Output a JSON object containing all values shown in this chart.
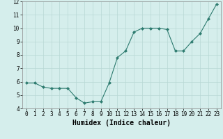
{
  "x": [
    0,
    1,
    2,
    3,
    4,
    5,
    6,
    7,
    8,
    9,
    10,
    11,
    12,
    13,
    14,
    15,
    16,
    17,
    18,
    19,
    20,
    21,
    22,
    23
  ],
  "y": [
    5.9,
    5.9,
    5.6,
    5.5,
    5.5,
    5.5,
    4.8,
    4.4,
    4.5,
    4.5,
    5.9,
    7.8,
    8.3,
    9.7,
    10.0,
    10.0,
    10.0,
    9.9,
    8.3,
    8.3,
    9.0,
    9.6,
    10.7,
    11.8
  ],
  "line_color": "#2d7b6f",
  "marker": "D",
  "marker_size": 2.0,
  "bg_color": "#d5eeec",
  "grid_color": "#b8d8d5",
  "xlabel": "Humidex (Indice chaleur)",
  "tick_fontsize": 5.5,
  "xlabel_fontsize": 7.0,
  "xlim": [
    -0.5,
    23.5
  ],
  "ylim": [
    4,
    12
  ],
  "yticks": [
    4,
    5,
    6,
    7,
    8,
    9,
    10,
    11,
    12
  ],
  "xticks": [
    0,
    1,
    2,
    3,
    4,
    5,
    6,
    7,
    8,
    9,
    10,
    11,
    12,
    13,
    14,
    15,
    16,
    17,
    18,
    19,
    20,
    21,
    22,
    23
  ]
}
